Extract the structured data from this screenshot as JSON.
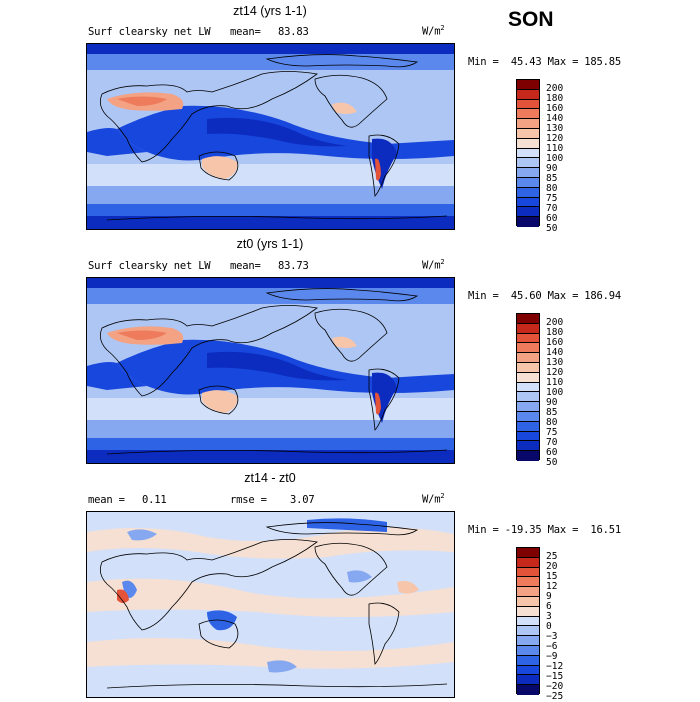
{
  "season": "SON",
  "colors": {
    "seq": [
      "#08086b",
      "#0c2bbf",
      "#1747dd",
      "#2f63e6",
      "#5b88ec",
      "#86a8f0",
      "#aec6f4",
      "#d2e0fa",
      "#f6e0d3",
      "#f7c5aa",
      "#f3a384",
      "#ed7b5c",
      "#e25339",
      "#c7281c",
      "#7f0000"
    ],
    "div": [
      "#08086b",
      "#0c2bbf",
      "#1747dd",
      "#2f63e6",
      "#5b88ec",
      "#86a8f0",
      "#aec6f4",
      "#d2e0fa",
      "#f6e0d3",
      "#f7c5aa",
      "#f3a384",
      "#ed7b5c",
      "#e25339",
      "#c7281c",
      "#7f0000"
    ]
  },
  "panels": [
    {
      "title": "zt14 (yrs 1-1)",
      "variable": "Surf clearsky net LW",
      "mean_label": "mean=",
      "mean_value": "83.83",
      "units_base": "W/m",
      "units_exp": "2",
      "minmax": "Min =  45.43 Max = 185.85",
      "levels": [
        "200",
        "180",
        "160",
        "140",
        "130",
        "120",
        "110",
        "100",
        "90",
        "85",
        "80",
        "75",
        "70",
        "60",
        "50"
      ]
    },
    {
      "title": "zt0 (yrs 1-1)",
      "variable": "Surf clearsky net LW",
      "mean_label": "mean=",
      "mean_value": "83.73",
      "units_base": "W/m",
      "units_exp": "2",
      "minmax": "Min =  45.60 Max = 186.94",
      "levels": [
        "200",
        "180",
        "160",
        "140",
        "130",
        "120",
        "110",
        "100",
        "90",
        "85",
        "80",
        "75",
        "70",
        "60",
        "50"
      ]
    },
    {
      "title": "zt14 - zt0",
      "mean_label": "mean =",
      "mean_value": "0.11",
      "rmse_label": "rmse =",
      "rmse_value": "3.07",
      "units_base": "W/m",
      "units_exp": "2",
      "minmax": "Min = -19.35 Max =  16.51",
      "levels": [
        "25",
        "20",
        "15",
        "12",
        "9",
        "6",
        "3",
        "0",
        "−3",
        "−6",
        "−9",
        "−12",
        "−15",
        "−20",
        "−25"
      ]
    }
  ],
  "chart_data": [
    {
      "type": "heatmap",
      "title": "zt14 (yrs 1-1)",
      "subtitle": "Surf clearsky net LW",
      "mean": 83.83,
      "units": "W/m2",
      "min": 45.43,
      "max": 185.85,
      "contour_levels": [
        50,
        60,
        70,
        75,
        80,
        85,
        90,
        100,
        110,
        120,
        130,
        140,
        160,
        180,
        200
      ]
    },
    {
      "type": "heatmap",
      "title": "zt0 (yrs 1-1)",
      "subtitle": "Surf clearsky net LW",
      "mean": 83.73,
      "units": "W/m2",
      "min": 45.6,
      "max": 186.94,
      "contour_levels": [
        50,
        60,
        70,
        75,
        80,
        85,
        90,
        100,
        110,
        120,
        130,
        140,
        160,
        180,
        200
      ]
    },
    {
      "type": "heatmap",
      "title": "zt14 - zt0",
      "mean": 0.11,
      "rmse": 3.07,
      "units": "W/m2",
      "min": -19.35,
      "max": 16.51,
      "contour_levels": [
        -25,
        -20,
        -15,
        -12,
        -9,
        -6,
        -3,
        0,
        3,
        6,
        9,
        12,
        15,
        20,
        25
      ]
    }
  ]
}
